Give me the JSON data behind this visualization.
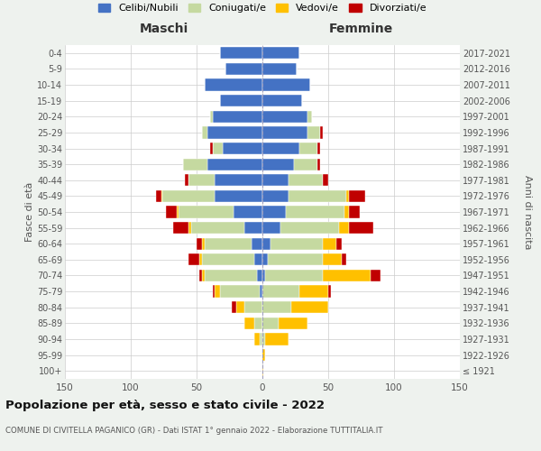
{
  "age_groups": [
    "100+",
    "95-99",
    "90-94",
    "85-89",
    "80-84",
    "75-79",
    "70-74",
    "65-69",
    "60-64",
    "55-59",
    "50-54",
    "45-49",
    "40-44",
    "35-39",
    "30-34",
    "25-29",
    "20-24",
    "15-19",
    "10-14",
    "5-9",
    "0-4"
  ],
  "birth_years": [
    "≤ 1921",
    "1922-1926",
    "1927-1931",
    "1932-1936",
    "1937-1941",
    "1942-1946",
    "1947-1951",
    "1952-1956",
    "1957-1961",
    "1962-1966",
    "1967-1971",
    "1972-1976",
    "1977-1981",
    "1982-1986",
    "1987-1991",
    "1992-1996",
    "1997-2001",
    "2002-2006",
    "2007-2011",
    "2012-2016",
    "2017-2021"
  ],
  "males": {
    "celibi": [
      0,
      0,
      0,
      0,
      0,
      2,
      4,
      6,
      8,
      14,
      22,
      36,
      36,
      42,
      30,
      42,
      38,
      32,
      44,
      28,
      32
    ],
    "coniugati": [
      0,
      0,
      2,
      6,
      14,
      30,
      40,
      40,
      36,
      40,
      42,
      40,
      20,
      18,
      8,
      4,
      2,
      0,
      0,
      0,
      0
    ],
    "vedovi": [
      0,
      0,
      4,
      8,
      6,
      4,
      2,
      2,
      2,
      2,
      1,
      1,
      0,
      0,
      0,
      0,
      0,
      0,
      0,
      0,
      0
    ],
    "divorziati": [
      0,
      0,
      0,
      0,
      3,
      2,
      2,
      8,
      4,
      12,
      8,
      4,
      3,
      0,
      2,
      0,
      0,
      0,
      0,
      0,
      0
    ]
  },
  "females": {
    "nubili": [
      0,
      0,
      0,
      0,
      0,
      0,
      2,
      4,
      6,
      14,
      18,
      20,
      20,
      24,
      28,
      34,
      34,
      30,
      36,
      26,
      28
    ],
    "coniugate": [
      0,
      0,
      2,
      12,
      22,
      28,
      44,
      42,
      40,
      44,
      44,
      44,
      26,
      18,
      14,
      10,
      4,
      0,
      0,
      0,
      0
    ],
    "vedove": [
      1,
      2,
      18,
      22,
      28,
      22,
      36,
      14,
      10,
      8,
      4,
      2,
      0,
      0,
      0,
      0,
      0,
      0,
      0,
      0,
      0
    ],
    "divorziate": [
      0,
      0,
      0,
      0,
      0,
      2,
      8,
      4,
      4,
      18,
      8,
      12,
      4,
      2,
      2,
      2,
      0,
      0,
      0,
      0,
      0
    ]
  },
  "colors": {
    "celibi_nubili": "#4472c4",
    "coniugati": "#c5d9a0",
    "vedovi": "#ffc000",
    "divorziati": "#c00000"
  },
  "xlim": 150,
  "title": "Popolazione per età, sesso e stato civile - 2022",
  "subtitle": "COMUNE DI CIVITELLA PAGANICO (GR) - Dati ISTAT 1° gennaio 2022 - Elaborazione TUTTITALIA.IT",
  "legend_labels": [
    "Celibi/Nubili",
    "Coniugati/e",
    "Vedovi/e",
    "Divorziati/e"
  ],
  "ylabel_left": "Fasce di età",
  "ylabel_right": "Anni di nascita",
  "xlabel_left": "Maschi",
  "xlabel_right": "Femmine",
  "bg_color": "#eef2ee",
  "plot_bg_color": "#ffffff"
}
